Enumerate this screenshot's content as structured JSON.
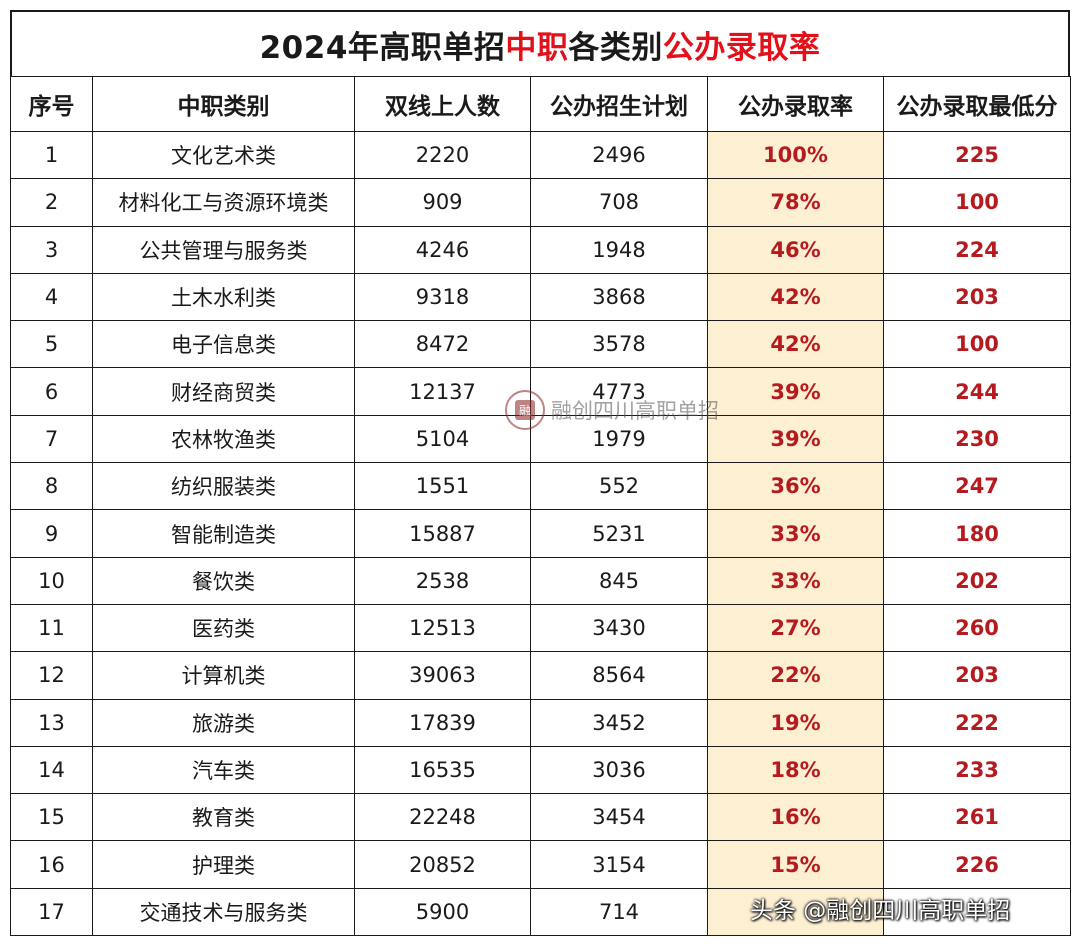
{
  "title": {
    "part1": "2024年高职单招",
    "part2": "中职",
    "part3": "各类别",
    "part4": "公办录取率"
  },
  "headers": [
    "序号",
    "中职类别",
    "双线上人数",
    "公办招生计划",
    "公办录取率",
    "公办录取最低分"
  ],
  "rows": [
    [
      "1",
      "文化艺术类",
      "2220",
      "2496",
      "100%",
      "225"
    ],
    [
      "2",
      "材料化工与资源环境类",
      "909",
      "708",
      "78%",
      "100"
    ],
    [
      "3",
      "公共管理与服务类",
      "4246",
      "1948",
      "46%",
      "224"
    ],
    [
      "4",
      "土木水利类",
      "9318",
      "3868",
      "42%",
      "203"
    ],
    [
      "5",
      "电子信息类",
      "8472",
      "3578",
      "42%",
      "100"
    ],
    [
      "6",
      "财经商贸类",
      "12137",
      "4773",
      "39%",
      "244"
    ],
    [
      "7",
      "农林牧渔类",
      "5104",
      "1979",
      "39%",
      "230"
    ],
    [
      "8",
      "纺织服装类",
      "1551",
      "552",
      "36%",
      "247"
    ],
    [
      "9",
      "智能制造类",
      "15887",
      "5231",
      "33%",
      "180"
    ],
    [
      "10",
      "餐饮类",
      "2538",
      "845",
      "33%",
      "202"
    ],
    [
      "11",
      "医药类",
      "12513",
      "3430",
      "27%",
      "260"
    ],
    [
      "12",
      "计算机类",
      "39063",
      "8564",
      "22%",
      "203"
    ],
    [
      "13",
      "旅游类",
      "17839",
      "3452",
      "19%",
      "222"
    ],
    [
      "14",
      "汽车类",
      "16535",
      "3036",
      "18%",
      "233"
    ],
    [
      "15",
      "教育类",
      "22248",
      "3454",
      "16%",
      "261"
    ],
    [
      "16",
      "护理类",
      "20852",
      "3154",
      "15%",
      "226"
    ],
    [
      "17",
      "交通技术与服务类",
      "5900",
      "714",
      "",
      ""
    ]
  ],
  "watermark": {
    "center_text": "融创四川高职单招",
    "seal_glyph": "融",
    "bottom_text": "头条 @融创四川高职单招"
  },
  "colors": {
    "accent_red": "#e3101a",
    "value_red": "#b51a1e",
    "rate_bg": "#fdefd2"
  }
}
